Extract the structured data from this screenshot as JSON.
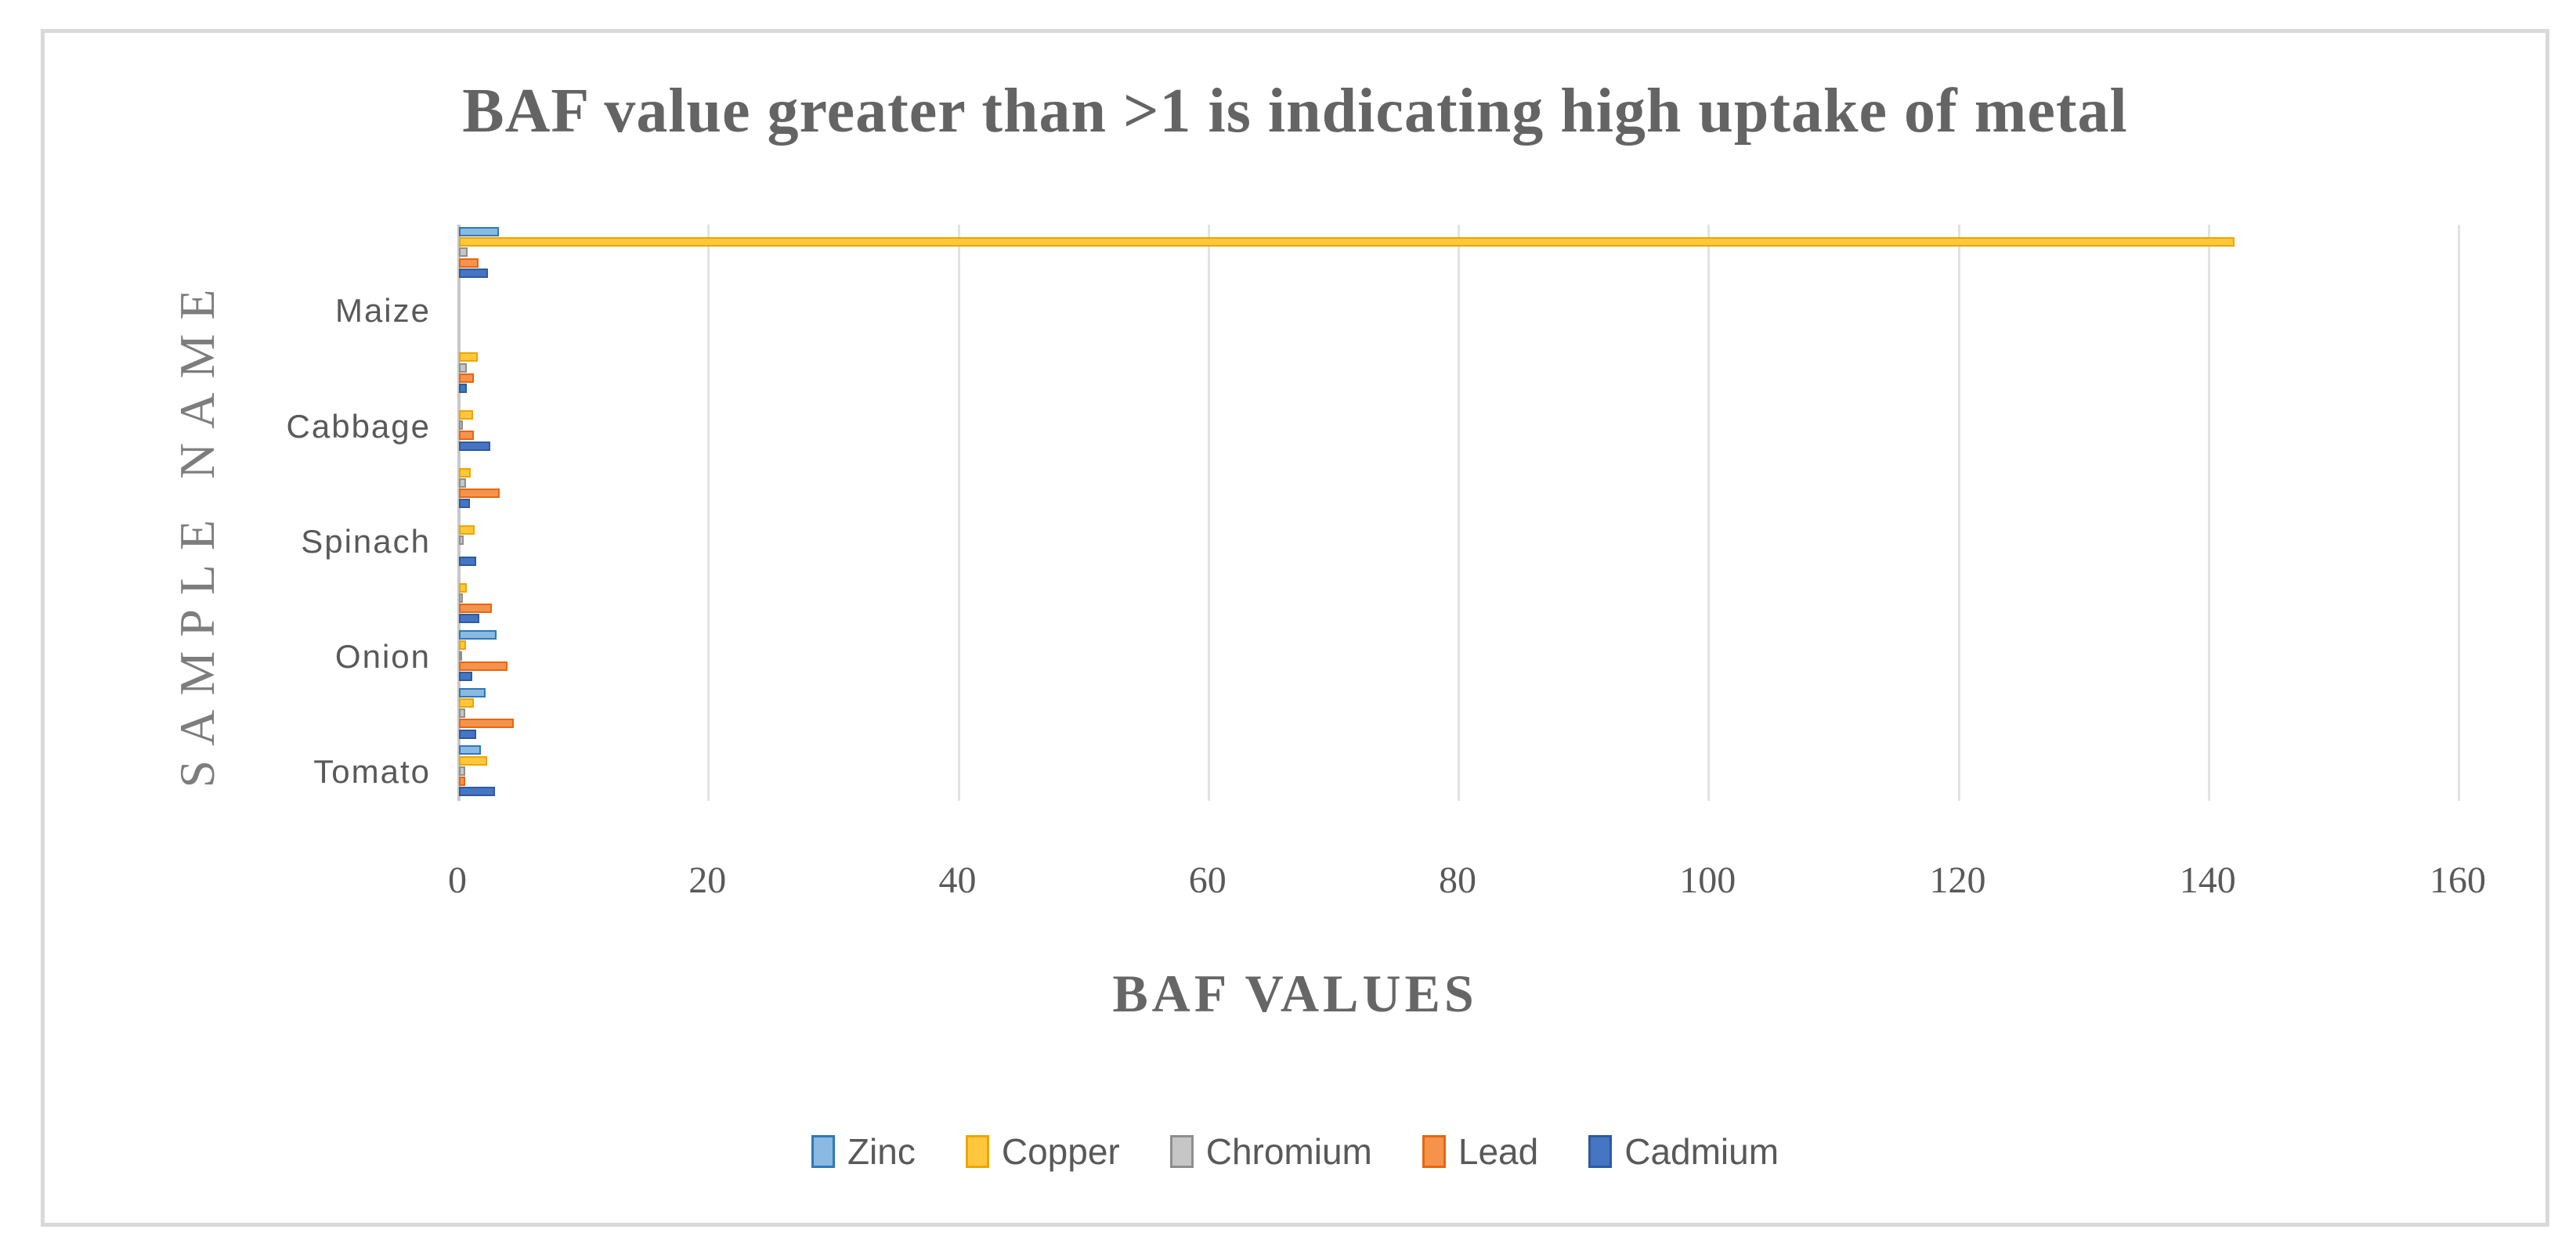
{
  "figure": {
    "background": "#FFFFFF",
    "border_color": "#D9D9D9"
  },
  "title": {
    "text": "BAF value greater than >1 is indicating high uptake of metal",
    "color": "#646464"
  },
  "chart_data": {
    "type": "bar",
    "orientation": "horizontal",
    "title": "BAF value greater than >1 is indicating high uptake of metal",
    "xlabel": "BAF VALUES",
    "ylabel": "SAMPLE NAME",
    "xlim": [
      0,
      160
    ],
    "xticks": [
      "0",
      "20",
      "40",
      "60",
      "80",
      "100",
      "120",
      "140",
      "160"
    ],
    "grid": "vertical-only",
    "gridline_color": "#E2E2E2",
    "axis_line_color": "#C8C8C8",
    "legend_position": "bottom",
    "categories": [
      "Maize",
      "Cabbage",
      "Spinach",
      "Onion",
      "Tomato"
    ],
    "series": [
      {
        "name": "Zinc",
        "fill": "#8AB9E1",
        "border": "#2E79B8"
      },
      {
        "name": "Copper",
        "fill": "#FFC83C",
        "border": "#EFA400"
      },
      {
        "name": "Chromium",
        "fill": "#C6C6C6",
        "border": "#8E8E8E"
      },
      {
        "name": "Lead",
        "fill": "#F5934D",
        "border": "#E8660E"
      },
      {
        "name": "Cadmium",
        "fill": "#4675C4",
        "border": "#2D5B9E"
      }
    ],
    "rows": [
      {
        "label": "",
        "values": [
          3.2,
          142,
          0.7,
          1.55,
          2.3
        ]
      },
      {
        "label": "Maize",
        "values": [
          0,
          0,
          0,
          0,
          0
        ]
      },
      {
        "label": "",
        "values": [
          0,
          1.5,
          0.6,
          1.2,
          0.6
        ]
      },
      {
        "label": "Cabbage",
        "values": [
          0,
          1.1,
          0.3,
          1.2,
          2.5
        ]
      },
      {
        "label": "",
        "values": [
          0,
          0.95,
          0.55,
          3.25,
          0.85
        ]
      },
      {
        "label": "Spinach",
        "values": [
          0,
          1.25,
          0.4,
          0,
          1.4
        ]
      },
      {
        "label": "",
        "values": [
          0,
          0.65,
          0.3,
          2.6,
          1.6
        ]
      },
      {
        "label": "Onion",
        "values": [
          3.0,
          0.55,
          0.2,
          3.9,
          1.05
        ]
      },
      {
        "label": "",
        "values": [
          2.1,
          1.2,
          0.5,
          4.4,
          1.4
        ]
      },
      {
        "label": "Tomato",
        "values": [
          1.75,
          2.25,
          0.5,
          0.5,
          2.9
        ]
      }
    ]
  },
  "text_color": "#595959"
}
